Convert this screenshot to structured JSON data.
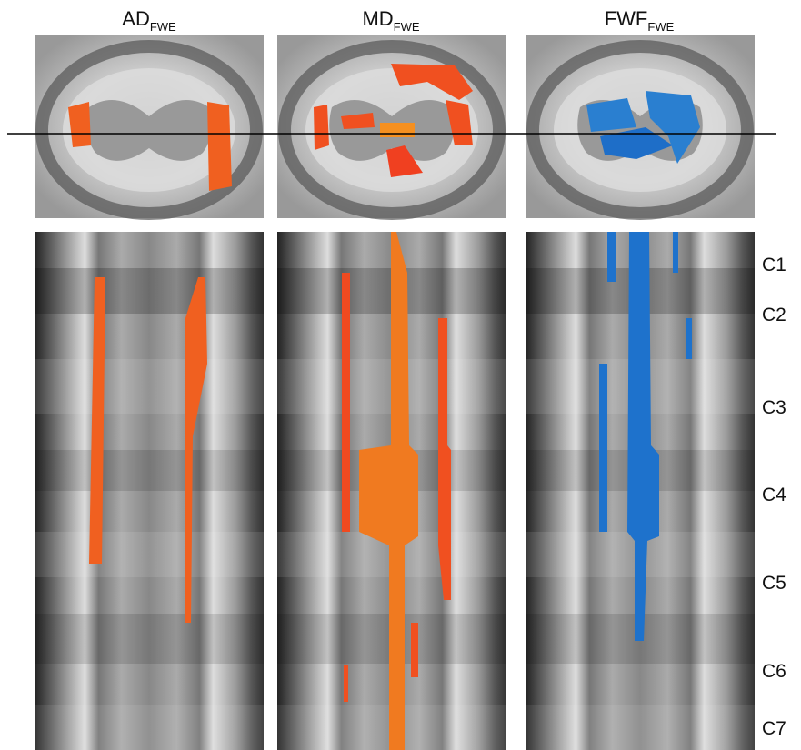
{
  "panels": [
    {
      "title": "AD",
      "subscript": "FWE"
    },
    {
      "title": "MD",
      "subscript": "FWE"
    },
    {
      "title": "FWF",
      "subscript": "FWE"
    }
  ],
  "levels": [
    "C1",
    "C2",
    "C3",
    "C4",
    "C5",
    "C6",
    "C7"
  ]
}
